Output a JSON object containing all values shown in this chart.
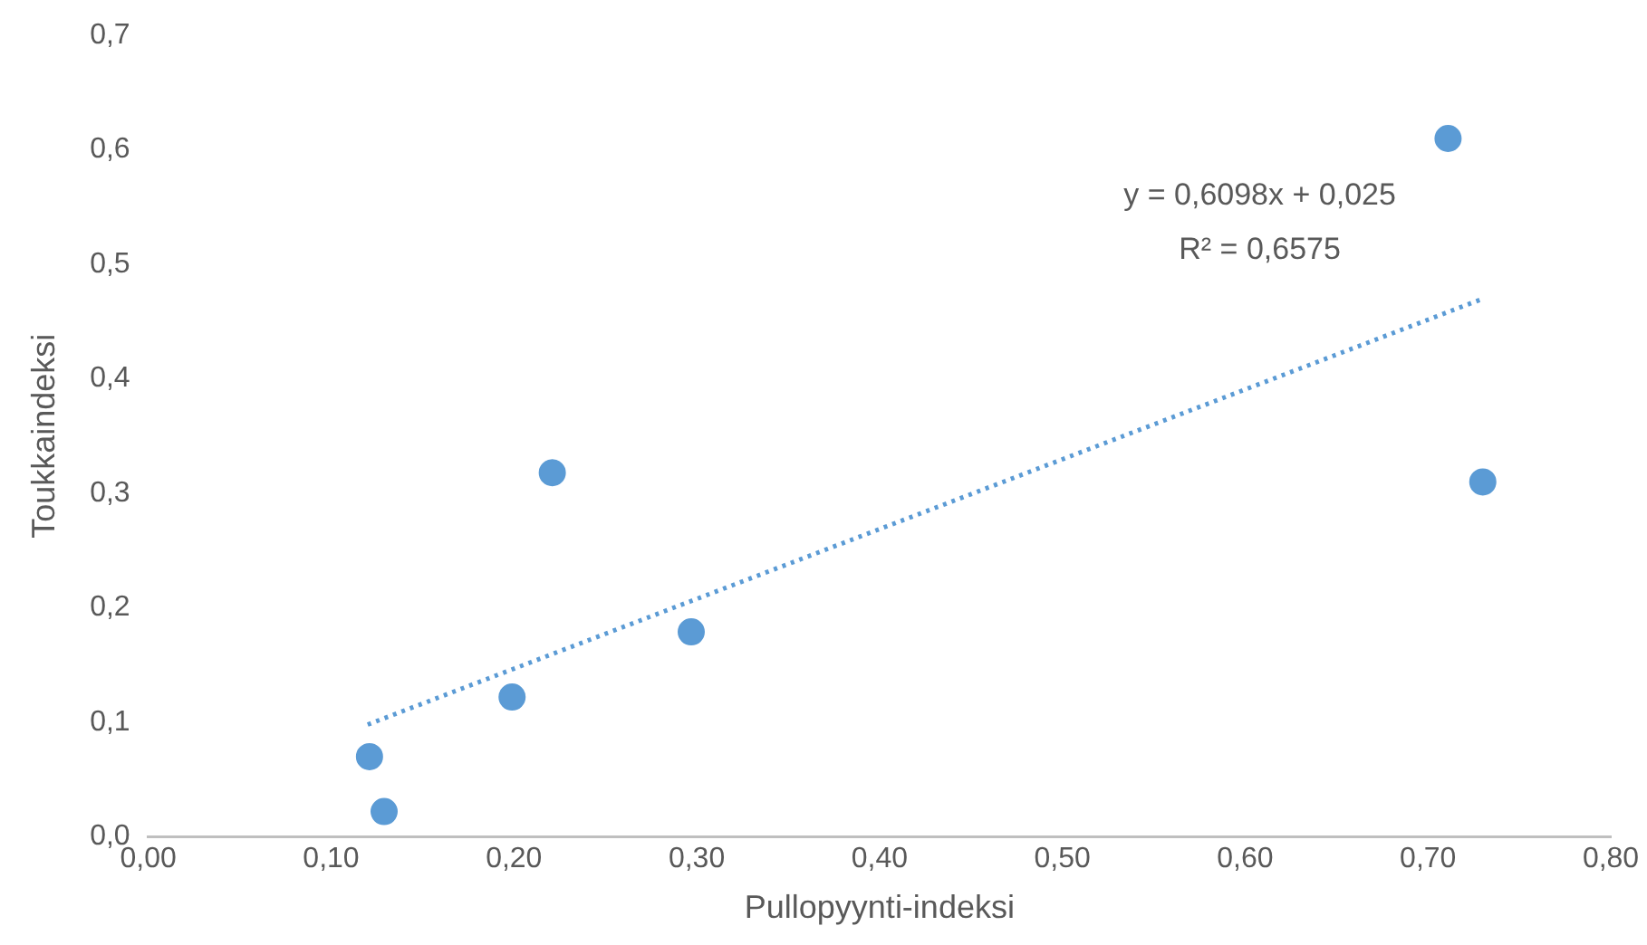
{
  "chart_data": {
    "type": "scatter",
    "xlabel": "Pullopyynti-indeksi",
    "ylabel": "Toukkaindeksi",
    "grid": false,
    "legend": false,
    "marker": "circle",
    "xlim": [
      0,
      0.8
    ],
    "ylim": [
      0,
      0.7
    ],
    "xticks": [
      {
        "value": 0,
        "label": "0,00"
      },
      {
        "value": 0.1,
        "label": "0,10"
      },
      {
        "value": 0.2,
        "label": "0,20"
      },
      {
        "value": 0.3,
        "label": "0,30"
      },
      {
        "value": 0.4,
        "label": "0,40"
      },
      {
        "value": 0.5,
        "label": "0,50"
      },
      {
        "value": 0.6,
        "label": "0,60"
      },
      {
        "value": 0.7,
        "label": "0,70"
      },
      {
        "value": 0.8,
        "label": "0,80"
      }
    ],
    "yticks": [
      {
        "value": 0,
        "label": "0,0"
      },
      {
        "value": 0.1,
        "label": "0,1"
      },
      {
        "value": 0.2,
        "label": "0,2"
      },
      {
        "value": 0.3,
        "label": "0,3"
      },
      {
        "value": 0.4,
        "label": "0,4"
      },
      {
        "value": 0.5,
        "label": "0,5"
      },
      {
        "value": 0.6,
        "label": "0,6"
      },
      {
        "value": 0.7,
        "label": "0,7"
      }
    ],
    "series": [
      {
        "color": "#5b9bd5",
        "x": [
          0.121,
          0.129,
          0.199,
          0.221,
          0.297,
          0.711,
          0.73
        ],
        "values": [
          0.07,
          0.022,
          0.122,
          0.318,
          0.179,
          0.61,
          0.31
        ]
      },
      {
        "type": "line",
        "color": "#5b9bd5",
        "line_style": "dotted",
        "marker": "none",
        "x": [
          0.12,
          0.73
        ],
        "values": [
          0.098,
          0.47
        ]
      }
    ],
    "annotations": [
      "y = 0,6098x + 0,025",
      "R² = 0,6575"
    ]
  }
}
